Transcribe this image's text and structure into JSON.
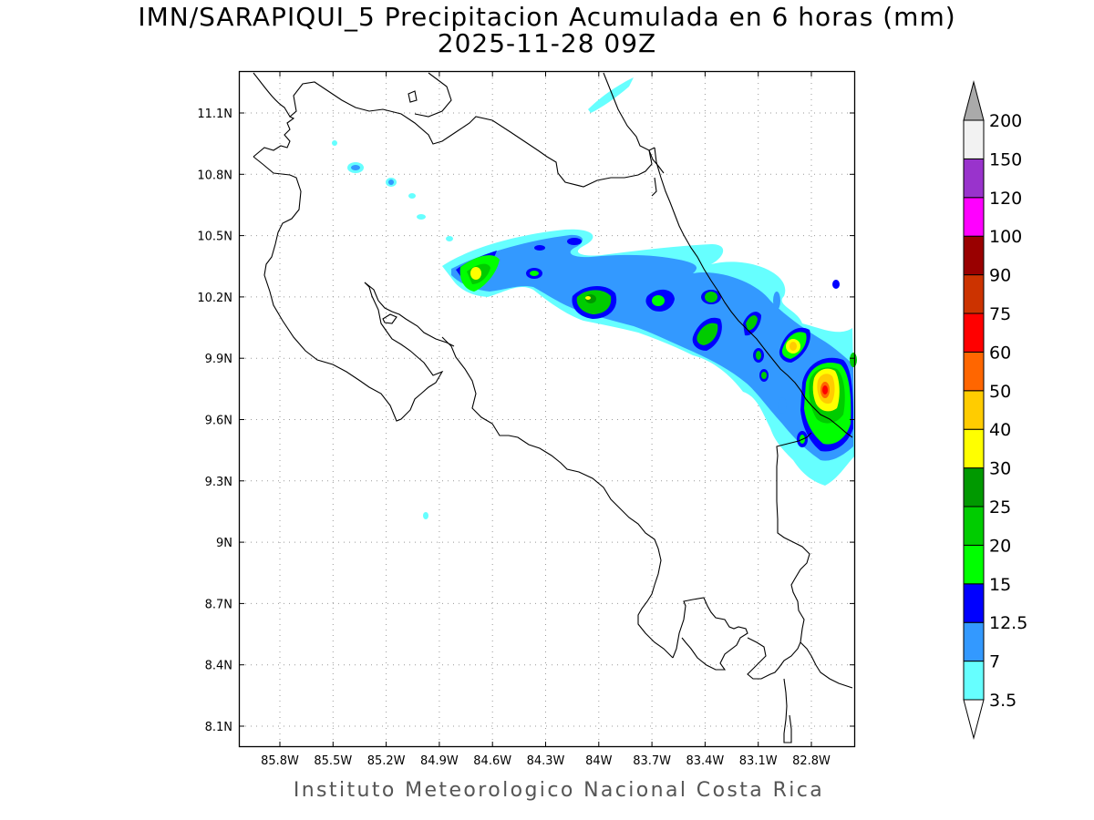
{
  "header": {
    "title": "IMN/SARAPIQUI_5 Precipitacion Acumulada en 6 horas (mm)",
    "subtitle": "2025-11-28 09Z"
  },
  "footer": {
    "credit": "Instituto Meteorologico Nacional Costa Rica"
  },
  "map": {
    "lon_range": [
      -86.1,
      -82.6
    ],
    "lat_range": [
      7.99,
      11.3
    ],
    "lon_ticks": [
      {
        "value": -85.8,
        "label": "85.8W"
      },
      {
        "value": -85.5,
        "label": "85.5W"
      },
      {
        "value": -85.2,
        "label": "85.2W"
      },
      {
        "value": -84.9,
        "label": "84.9W"
      },
      {
        "value": -84.6,
        "label": "84.6W"
      },
      {
        "value": -84.3,
        "label": "84.3W"
      },
      {
        "value": -84.0,
        "label": "84W"
      },
      {
        "value": -83.7,
        "label": "83.7W"
      },
      {
        "value": -83.4,
        "label": "83.4W"
      },
      {
        "value": -83.1,
        "label": "83.1W"
      },
      {
        "value": -82.8,
        "label": "82.8W"
      }
    ],
    "lat_ticks": [
      {
        "value": 11.1,
        "label": "11.1N"
      },
      {
        "value": 10.8,
        "label": "10.8N"
      },
      {
        "value": 10.5,
        "label": "10.5N"
      },
      {
        "value": 10.2,
        "label": "10.2N"
      },
      {
        "value": 9.9,
        "label": "9.9N"
      },
      {
        "value": 9.6,
        "label": "9.6N"
      },
      {
        "value": 9.3,
        "label": "9.3N"
      },
      {
        "value": 9.0,
        "label": "9N"
      },
      {
        "value": 8.7,
        "label": "8.7N"
      },
      {
        "value": 8.4,
        "label": "8.4N"
      },
      {
        "value": 8.1,
        "label": "8.1N"
      }
    ],
    "grid": true
  },
  "colorbar": {
    "levels": [
      {
        "label": "3.5",
        "color": "#66ffff"
      },
      {
        "label": "7",
        "color": "#3399ff"
      },
      {
        "label": "12.5",
        "color": "#0000ff"
      },
      {
        "label": "15",
        "color": "#00ff00"
      },
      {
        "label": "20",
        "color": "#00cc00"
      },
      {
        "label": "25",
        "color": "#009900"
      },
      {
        "label": "30",
        "color": "#ffff00"
      },
      {
        "label": "40",
        "color": "#ffcc00"
      },
      {
        "label": "50",
        "color": "#ff6600"
      },
      {
        "label": "60",
        "color": "#ff0000"
      },
      {
        "label": "75",
        "color": "#cc3300"
      },
      {
        "label": "90",
        "color": "#990000"
      },
      {
        "label": "100",
        "color": "#ff00ff"
      },
      {
        "label": "120",
        "color": "#9933cc"
      },
      {
        "label": "150",
        "color": "#f2f2f2"
      },
      {
        "label": "200",
        "color": "#aaaaaa"
      }
    ]
  }
}
